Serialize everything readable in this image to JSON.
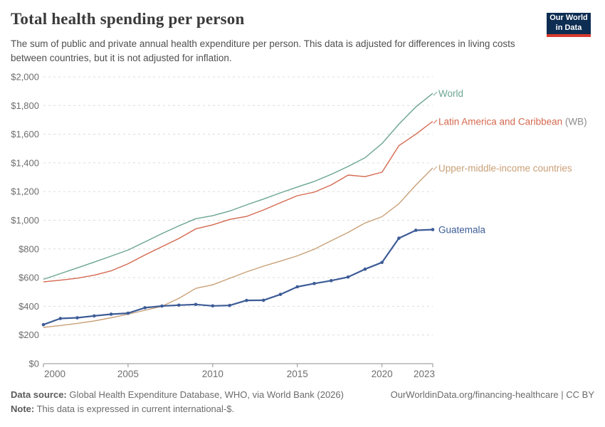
{
  "header": {
    "title": "Total health spending per person",
    "subtitle": "The sum of public and private annual health expenditure per person. This data is adjusted for differences in living costs between countries, but it is not adjusted for inflation.",
    "logo": {
      "line1": "Our World",
      "line2": "in Data",
      "bg_color": "#0d2d52",
      "accent_color": "#d73a2d"
    }
  },
  "footer": {
    "source_label": "Data source:",
    "source_text": " Global Health Expenditure Database, WHO, via World Bank (2026)",
    "link_text": "OurWorldinData.org/financing-healthcare | CC BY",
    "note_label": "Note:",
    "note_text": " This data is expressed in current international-$."
  },
  "chart_data": {
    "type": "line",
    "title": "Total health spending per person",
    "xlabel": "",
    "ylabel": "",
    "xlim": [
      2000,
      2023
    ],
    "ylim": [
      0,
      2000
    ],
    "grid": "horizontal-dashed",
    "legend_position": "end-of-line-labels",
    "x_ticks": [
      2000,
      2005,
      2010,
      2015,
      2020,
      2023
    ],
    "y_ticks": [
      0,
      200,
      400,
      600,
      800,
      1000,
      1200,
      1400,
      1600,
      1800,
      2000
    ],
    "y_tick_prefix": "$",
    "x": [
      2000,
      2001,
      2002,
      2003,
      2004,
      2005,
      2006,
      2007,
      2008,
      2009,
      2010,
      2011,
      2012,
      2013,
      2014,
      2015,
      2016,
      2017,
      2018,
      2019,
      2020,
      2021,
      2022,
      2023
    ],
    "series": [
      {
        "name": "World",
        "suffix": "",
        "color": "#6aa58f",
        "focused": false,
        "values": [
          588,
          628,
          668,
          708,
          750,
          792,
          849,
          907,
          961,
          1011,
          1032,
          1064,
          1107,
          1148,
          1191,
          1232,
          1271,
          1320,
          1375,
          1436,
          1535,
          1670,
          1790,
          1885
        ]
      },
      {
        "name": "Latin America and Caribbean",
        "suffix": " (WB)",
        "color": "#d4684f",
        "focused": false,
        "values": [
          570,
          582,
          596,
          617,
          647,
          697,
          758,
          816,
          873,
          940,
          968,
          1006,
          1027,
          1072,
          1122,
          1171,
          1196,
          1246,
          1315,
          1304,
          1335,
          1520,
          1600,
          1690
        ]
      },
      {
        "name": "Upper-middle-income countries",
        "suffix": "",
        "color": "#c9a077",
        "focused": false,
        "values": [
          253,
          266,
          281,
          298,
          320,
          345,
          372,
          400,
          455,
          525,
          550,
          595,
          640,
          680,
          715,
          752,
          798,
          857,
          915,
          981,
          1025,
          1115,
          1245,
          1365
        ]
      },
      {
        "name": "Guatemala",
        "suffix": "",
        "color": "#3d5c97",
        "focused": true,
        "values": [
          272,
          315,
          320,
          333,
          345,
          352,
          390,
          402,
          408,
          413,
          403,
          406,
          441,
          442,
          483,
          536,
          559,
          579,
          604,
          659,
          706,
          875,
          930,
          935
        ]
      }
    ],
    "suffix_color": "#8b8b8b",
    "axis_color": "#8f8f8f",
    "gridline_color": "#dcdcdc",
    "tick_label_color": "#6e6e6e"
  }
}
